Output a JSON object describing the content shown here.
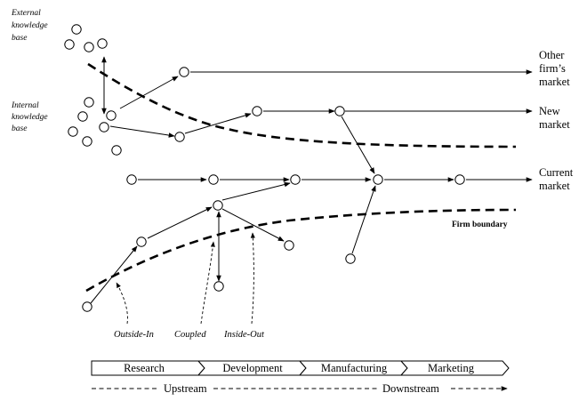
{
  "knowledge": {
    "external": [
      "External",
      "knowledge",
      "base"
    ],
    "internal": [
      "Internal",
      "knowledge",
      "base"
    ]
  },
  "markets": {
    "other": [
      "Other",
      "firm’s",
      "market"
    ],
    "new": [
      "New",
      "market"
    ],
    "current": [
      "Current",
      "market"
    ]
  },
  "firm_boundary": "Firm boundary",
  "process_types": {
    "outside_in": "Outside-In",
    "coupled": "Coupled",
    "inside_out": "Inside-Out"
  },
  "stages": [
    "Research",
    "Development",
    "Manufacturing",
    "Marketing"
  ],
  "flow": {
    "upstream": "Upstream",
    "downstream": "Downstream"
  }
}
